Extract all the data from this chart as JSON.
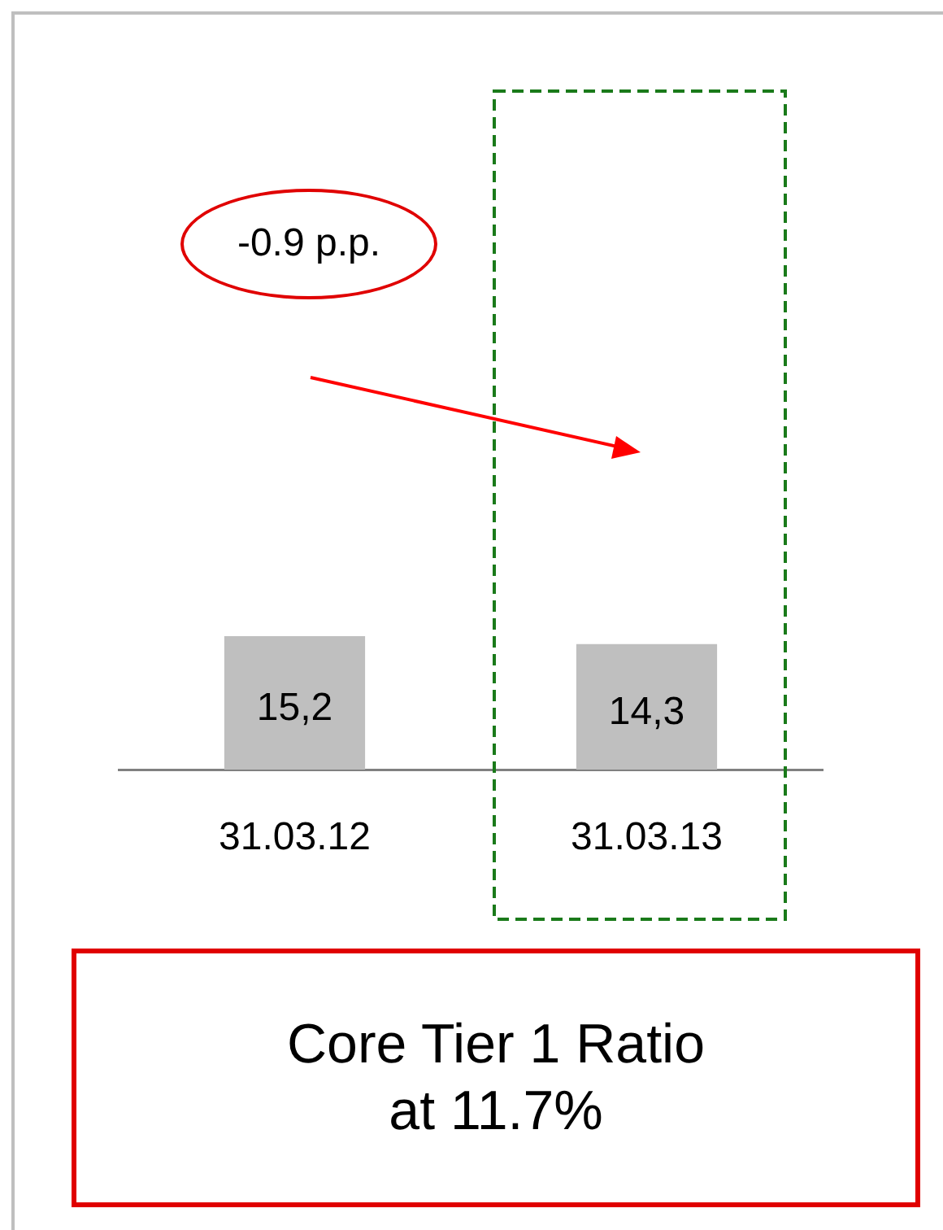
{
  "chart_data": {
    "type": "bar",
    "categories": [
      "31.03.12",
      "31.03.13"
    ],
    "values": [
      15.2,
      14.3
    ],
    "value_labels": [
      "15,2",
      "14,3"
    ],
    "color": "#bfbfbf",
    "annotations": [
      "-0.9 p.p.",
      "Core Tier 1 Ratio\nat 11.7%"
    ],
    "grid": false,
    "legend": false
  }
}
